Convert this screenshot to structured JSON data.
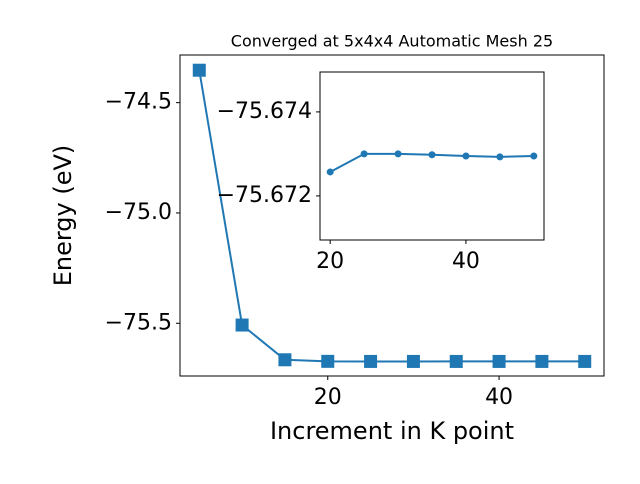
{
  "chart_data": [
    {
      "type": "line",
      "title": "Converged at 5x4x4 Automatic Mesh 25",
      "xlabel": "Increment in K point",
      "ylabel": "Energy (eV)",
      "x": [
        5,
        10,
        15,
        20,
        25,
        30,
        35,
        40,
        45,
        50
      ],
      "series": [
        {
          "color": "#1f77b4",
          "marker": "square",
          "values": [
            -74.353,
            -75.508,
            -75.6655,
            -75.67257,
            -75.673,
            -75.673,
            -75.67298,
            -75.67295,
            -75.67293,
            -75.67295
          ]
        }
      ],
      "xlim": [
        2.75,
        52.25
      ],
      "xticks": [
        20,
        40
      ],
      "ylim": [
        -75.739,
        -74.284
      ],
      "yticks": [
        {
          "value": -75.5,
          "label": "−75.5"
        },
        {
          "value": -75.0,
          "label": "−75.0"
        },
        {
          "value": -74.5,
          "label": "−74.5"
        }
      ]
    },
    {
      "type": "line",
      "x": [
        20,
        25,
        30,
        35,
        40,
        45,
        50
      ],
      "series": [
        {
          "color": "#1f77b4",
          "marker": "circle",
          "values": [
            -75.67257,
            -75.673,
            -75.673,
            -75.67298,
            -75.67295,
            -75.67293,
            -75.67295
          ]
        }
      ],
      "xlim": [
        18.5,
        51.5
      ],
      "xticks": [
        20,
        40
      ],
      "ylim": [
        -75.67095,
        -75.67495
      ],
      "yticks": [
        {
          "value": -75.672,
          "label": "−75.672"
        },
        {
          "value": -75.674,
          "label": "−75.674"
        }
      ]
    }
  ]
}
